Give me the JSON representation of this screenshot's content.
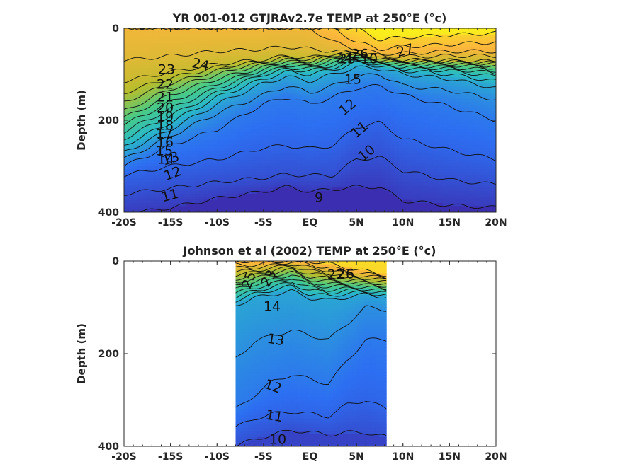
{
  "chart_data": [
    {
      "type": "heatmap",
      "title": "YR 001-012 GTJRAv2.7e TEMP at 250°E (°c)",
      "ylabel": "Depth (m)",
      "xlabel": "",
      "x_tick_labels": [
        "-20S",
        "-15S",
        "-10S",
        "-5S",
        "EQ",
        "5N",
        "10N",
        "15N",
        "20N"
      ],
      "x_ticks": [
        -20,
        -15,
        -10,
        -5,
        0,
        5,
        10,
        15,
        20
      ],
      "y_tick_labels": [
        "0",
        "200",
        "400"
      ],
      "xlim": [
        -20,
        20
      ],
      "ylim": [
        0,
        400
      ],
      "y_reversed": true,
      "data_extent_x": [
        -20,
        20
      ],
      "colormap": [
        "#3e26a8",
        "#2d6ff2",
        "#2ab9c8",
        "#48cb86",
        "#b6bd2c",
        "#fcb63c",
        "#f9fb15"
      ],
      "color_range": [
        8,
        29
      ],
      "contour_levels": [
        9,
        10,
        11,
        12,
        13,
        14,
        15,
        16,
        17,
        18,
        19,
        20,
        21,
        22,
        23,
        24,
        25,
        26,
        27
      ],
      "contour_labels": [
        "27",
        "26",
        "25",
        "24",
        "24",
        "23",
        "22",
        "21",
        "20",
        "19",
        "18",
        "17",
        "16",
        "15",
        "14",
        "13",
        "12",
        "11",
        "10",
        "15",
        "12",
        "11",
        "10",
        "9"
      ],
      "isotherm_depths": {
        "lat": [
          -20,
          -15,
          -10,
          -5,
          -2.5,
          0,
          2.5,
          5,
          7.5,
          10,
          15,
          20
        ],
        "9": [
          405,
          390,
          370,
          355,
          345,
          355,
          350,
          345,
          345,
          375,
          385,
          390
        ],
        "10": [
          360,
          348,
          335,
          325,
          318,
          320,
          320,
          285,
          280,
          310,
          330,
          340
        ],
        "11": [
          320,
          300,
          285,
          260,
          255,
          262,
          255,
          215,
          205,
          240,
          265,
          285
        ],
        "12": [
          300,
          255,
          220,
          165,
          150,
          165,
          150,
          130,
          125,
          145,
          170,
          200
        ],
        "13": [
          285,
          235,
          185,
          145,
          125,
          140,
          125,
          105,
          100,
          125,
          135,
          155
        ],
        "14": [
          270,
          220,
          165,
          120,
          105,
          115,
          100,
          85,
          88,
          100,
          110,
          130
        ],
        "15": [
          255,
          205,
          150,
          110,
          95,
          100,
          90,
          75,
          82,
          92,
          100,
          115
        ],
        "16": [
          240,
          190,
          140,
          100,
          90,
          92,
          85,
          70,
          80,
          88,
          92,
          105
        ],
        "17": [
          225,
          175,
          130,
          95,
          85,
          88,
          80,
          68,
          78,
          84,
          88,
          98
        ],
        "18": [
          210,
          160,
          120,
          90,
          80,
          84,
          75,
          65,
          76,
          81,
          84,
          92
        ],
        "19": [
          195,
          145,
          110,
          85,
          76,
          80,
          70,
          62,
          74,
          78,
          80,
          86
        ],
        "20": [
          180,
          132,
          100,
          80,
          72,
          76,
          66,
          60,
          72,
          75,
          77,
          82
        ],
        "21": [
          160,
          120,
          92,
          76,
          68,
          72,
          62,
          58,
          70,
          73,
          74,
          78
        ],
        "22": [
          140,
          108,
          85,
          72,
          64,
          68,
          58,
          56,
          68,
          71,
          72,
          75
        ],
        "23": [
          115,
          95,
          78,
          68,
          60,
          64,
          55,
          54,
          66,
          69,
          70,
          72
        ],
        "24": [
          70,
          60,
          50,
          45,
          40,
          45,
          50,
          52,
          60,
          62,
          60,
          60
        ],
        "25": [
          0,
          0,
          0,
          0,
          0,
          0,
          30,
          45,
          55,
          55,
          50,
          50
        ],
        "26": [
          0,
          0,
          0,
          0,
          0,
          0,
          0,
          30,
          45,
          40,
          35,
          30
        ],
        "27": [
          0,
          0,
          0,
          0,
          0,
          0,
          0,
          0,
          25,
          20,
          15,
          10
        ]
      }
    },
    {
      "type": "heatmap",
      "title": "Johnson et al (2002) TEMP at 250°E (°c)",
      "ylabel": "Depth (m)",
      "xlabel": "",
      "x_tick_labels": [
        "-20S",
        "-15S",
        "-10S",
        "-5S",
        "EQ",
        "5N",
        "10N",
        "15N",
        "20N"
      ],
      "x_ticks": [
        -20,
        -15,
        -10,
        -5,
        0,
        5,
        10,
        15,
        20
      ],
      "y_tick_labels": [
        "0",
        "200",
        "400"
      ],
      "xlim": [
        -20,
        20
      ],
      "ylim": [
        0,
        400
      ],
      "y_reversed": true,
      "data_extent_x": [
        -8,
        8.2
      ],
      "colormap": [
        "#3e26a8",
        "#2d6ff2",
        "#2ab9c8",
        "#48cb86",
        "#b6bd2c",
        "#fcb63c",
        "#f9fb15"
      ],
      "color_range": [
        8,
        29
      ],
      "contour_levels": [
        10,
        11,
        12,
        13,
        14,
        15,
        16,
        17,
        18,
        19,
        20,
        21,
        22,
        23,
        24,
        25,
        26
      ],
      "contour_labels": [
        "25",
        "23",
        "22",
        "26",
        "14",
        "13",
        "12",
        "11",
        "10"
      ],
      "isotherm_depths": {
        "lat": [
          -8,
          -6,
          -4,
          -2,
          0,
          2,
          4,
          6,
          8.2
        ],
        "10": [
          400,
          385,
          375,
          365,
          370,
          375,
          370,
          370,
          380
        ],
        "11": [
          360,
          340,
          330,
          325,
          330,
          335,
          310,
          300,
          320
        ],
        "12": [
          320,
          290,
          260,
          245,
          255,
          265,
          215,
          170,
          170
        ],
        "13": [
          210,
          175,
          160,
          150,
          160,
          170,
          135,
          100,
          105
        ],
        "14": [
          95,
          80,
          72,
          65,
          80,
          85,
          78,
          72,
          78
        ],
        "15": [
          85,
          72,
          62,
          55,
          72,
          75,
          70,
          68,
          74
        ],
        "16": [
          78,
          65,
          55,
          48,
          64,
          68,
          64,
          64,
          70
        ],
        "17": [
          70,
          58,
          48,
          42,
          58,
          62,
          60,
          60,
          66
        ],
        "18": [
          62,
          50,
          42,
          36,
          52,
          55,
          55,
          56,
          62
        ],
        "19": [
          54,
          44,
          36,
          30,
          46,
          50,
          50,
          52,
          58
        ],
        "20": [
          46,
          38,
          30,
          25,
          40,
          44,
          46,
          48,
          54
        ],
        "21": [
          38,
          32,
          25,
          20,
          34,
          38,
          42,
          44,
          50
        ],
        "22": [
          30,
          26,
          20,
          15,
          28,
          32,
          38,
          40,
          46
        ],
        "23": [
          24,
          20,
          15,
          10,
          22,
          26,
          33,
          36,
          42
        ],
        "24": [
          16,
          14,
          10,
          6,
          15,
          20,
          28,
          32,
          38
        ],
        "25": [
          8,
          8,
          5,
          2,
          8,
          14,
          22,
          28,
          34
        ],
        "26": [
          0,
          0,
          0,
          0,
          0,
          6,
          15,
          22,
          30
        ]
      }
    }
  ]
}
